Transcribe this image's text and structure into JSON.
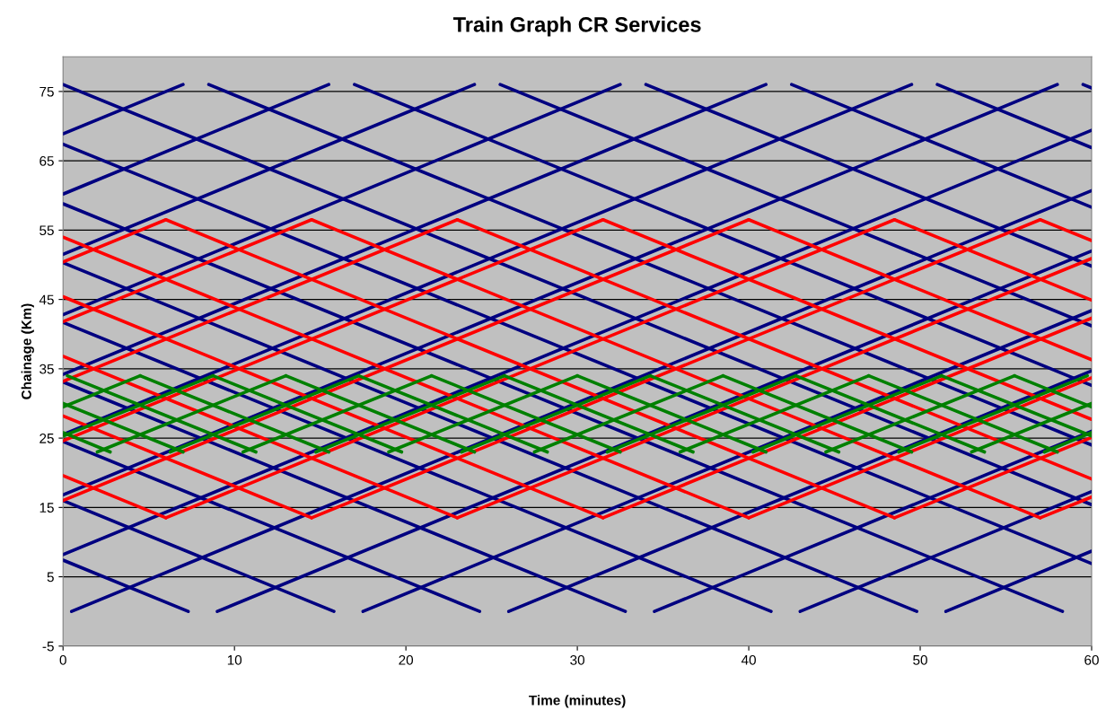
{
  "chart_data": {
    "type": "line",
    "title": "Train Graph CR Services",
    "xlabel": "Time (minutes)",
    "ylabel": "Chainage (Km)",
    "xlim": [
      0,
      60
    ],
    "xticks": [
      0,
      10,
      20,
      30,
      40,
      50,
      60
    ],
    "ylim": [
      -5,
      80
    ],
    "yticks": [
      -5,
      5,
      15,
      25,
      35,
      45,
      55,
      65,
      75
    ],
    "grid": "y",
    "legend": false,
    "series": [
      {
        "color": "#000080",
        "x": [
          0,
          7.3
        ],
        "values": [
          7.4,
          0
        ]
      },
      {
        "color": "#000080",
        "x": [
          0,
          15.8
        ],
        "values": [
          16.0,
          0
        ]
      },
      {
        "color": "#000080",
        "x": [
          0,
          24.3
        ],
        "values": [
          24.5,
          0
        ]
      },
      {
        "color": "#000080",
        "x": [
          0,
          32.8
        ],
        "values": [
          33.1,
          0
        ]
      },
      {
        "color": "#000080",
        "x": [
          0,
          41.3
        ],
        "values": [
          41.7,
          0
        ]
      },
      {
        "color": "#000080",
        "x": [
          0,
          49.8
        ],
        "values": [
          50.3,
          0
        ]
      },
      {
        "color": "#000080",
        "x": [
          0,
          58.3
        ],
        "values": [
          58.8,
          0
        ]
      },
      {
        "color": "#000080",
        "x": [
          0,
          60
        ],
        "values": [
          67.4,
          6.9
        ]
      },
      {
        "color": "#000080",
        "x": [
          0,
          60
        ],
        "values": [
          76,
          15.4
        ]
      },
      {
        "color": "#000080",
        "x": [
          8.5,
          60
        ],
        "values": [
          76,
          24.0
        ]
      },
      {
        "color": "#000080",
        "x": [
          17,
          60
        ],
        "values": [
          76,
          32.6
        ]
      },
      {
        "color": "#000080",
        "x": [
          25.5,
          60
        ],
        "values": [
          76,
          41.2
        ]
      },
      {
        "color": "#000080",
        "x": [
          34,
          60
        ],
        "values": [
          76,
          49.8
        ]
      },
      {
        "color": "#000080",
        "x": [
          42.5,
          60
        ],
        "values": [
          76,
          58.3
        ]
      },
      {
        "color": "#000080",
        "x": [
          51,
          60
        ],
        "values": [
          76,
          66.9
        ]
      },
      {
        "color": "#000080",
        "x": [
          59.5,
          60
        ],
        "values": [
          76,
          75.5
        ]
      },
      {
        "color": "#000080",
        "x": [
          0,
          7
        ],
        "values": [
          68.9,
          76
        ]
      },
      {
        "color": "#000080",
        "x": [
          0,
          15.5
        ],
        "values": [
          60.2,
          76
        ]
      },
      {
        "color": "#000080",
        "x": [
          0,
          24
        ],
        "values": [
          51.5,
          76
        ]
      },
      {
        "color": "#000080",
        "x": [
          0,
          32.5
        ],
        "values": [
          42.8,
          76
        ]
      },
      {
        "color": "#000080",
        "x": [
          0,
          41
        ],
        "values": [
          34.2,
          76
        ]
      },
      {
        "color": "#000080",
        "x": [
          0,
          49.5
        ],
        "values": [
          25.5,
          76
        ]
      },
      {
        "color": "#000080",
        "x": [
          0,
          58
        ],
        "values": [
          16.8,
          76
        ]
      },
      {
        "color": "#000080",
        "x": [
          0,
          60
        ],
        "values": [
          8.2,
          69.4
        ]
      },
      {
        "color": "#000080",
        "x": [
          0.5,
          60
        ],
        "values": [
          0,
          60.7
        ]
      },
      {
        "color": "#000080",
        "x": [
          9,
          60
        ],
        "values": [
          0,
          52.0
        ]
      },
      {
        "color": "#000080",
        "x": [
          17.5,
          60
        ],
        "values": [
          0,
          43.4
        ]
      },
      {
        "color": "#000080",
        "x": [
          26,
          60
        ],
        "values": [
          0,
          34.7
        ]
      },
      {
        "color": "#000080",
        "x": [
          34.5,
          60
        ],
        "values": [
          0,
          26.0
        ]
      },
      {
        "color": "#000080",
        "x": [
          43,
          60
        ],
        "values": [
          0,
          17.3
        ]
      },
      {
        "color": "#000080",
        "x": [
          51.5,
          60
        ],
        "values": [
          0,
          8.7
        ]
      },
      {
        "color": "#ff0000",
        "x": [
          0,
          6
        ],
        "values": [
          19.6,
          13.5
        ]
      },
      {
        "color": "#ff0000",
        "x": [
          0,
          14.5
        ],
        "values": [
          28.2,
          13.5
        ]
      },
      {
        "color": "#ff0000",
        "x": [
          0,
          23
        ],
        "values": [
          36.8,
          13.5
        ]
      },
      {
        "color": "#ff0000",
        "x": [
          0,
          31.5
        ],
        "values": [
          45.4,
          13.5
        ]
      },
      {
        "color": "#ff0000",
        "x": [
          0,
          40
        ],
        "values": [
          54.0,
          13.5
        ]
      },
      {
        "color": "#ff0000",
        "x": [
          6,
          48.5
        ],
        "values": [
          56.5,
          13.5
        ]
      },
      {
        "color": "#ff0000",
        "x": [
          14.5,
          57
        ],
        "values": [
          56.5,
          13.5
        ]
      },
      {
        "color": "#ff0000",
        "x": [
          23,
          60
        ],
        "values": [
          56.5,
          19.1
        ]
      },
      {
        "color": "#ff0000",
        "x": [
          31.5,
          60
        ],
        "values": [
          56.5,
          27.7
        ]
      },
      {
        "color": "#ff0000",
        "x": [
          40,
          60
        ],
        "values": [
          56.5,
          36.3
        ]
      },
      {
        "color": "#ff0000",
        "x": [
          48.5,
          60
        ],
        "values": [
          56.5,
          44.9
        ]
      },
      {
        "color": "#ff0000",
        "x": [
          57,
          60
        ],
        "values": [
          56.5,
          53.5
        ]
      },
      {
        "color": "#ff0000",
        "x": [
          0,
          6
        ],
        "values": [
          50.4,
          56.5
        ]
      },
      {
        "color": "#ff0000",
        "x": [
          0,
          14.5
        ],
        "values": [
          41.8,
          56.5
        ]
      },
      {
        "color": "#ff0000",
        "x": [
          0,
          23
        ],
        "values": [
          33.2,
          56.5
        ]
      },
      {
        "color": "#ff0000",
        "x": [
          0,
          31.5
        ],
        "values": [
          24.6,
          56.5
        ]
      },
      {
        "color": "#ff0000",
        "x": [
          0,
          40
        ],
        "values": [
          16.0,
          56.5
        ]
      },
      {
        "color": "#ff0000",
        "x": [
          6,
          48.5
        ],
        "values": [
          13.5,
          56.5
        ]
      },
      {
        "color": "#ff0000",
        "x": [
          14.5,
          57
        ],
        "values": [
          13.5,
          56.5
        ]
      },
      {
        "color": "#ff0000",
        "x": [
          23,
          60
        ],
        "values": [
          13.5,
          50.9
        ]
      },
      {
        "color": "#ff0000",
        "x": [
          31.5,
          60
        ],
        "values": [
          13.5,
          42.3
        ]
      },
      {
        "color": "#ff0000",
        "x": [
          40,
          60
        ],
        "values": [
          13.5,
          33.7
        ]
      },
      {
        "color": "#ff0000",
        "x": [
          48.5,
          60
        ],
        "values": [
          13.5,
          25.1
        ]
      },
      {
        "color": "#ff0000",
        "x": [
          57,
          60
        ],
        "values": [
          13.5,
          16.5
        ]
      },
      {
        "color": "#008000",
        "x": [
          0,
          2.75
        ],
        "values": [
          25.8,
          23
        ]
      },
      {
        "color": "#008000",
        "x": [
          0,
          7
        ],
        "values": [
          30,
          23
        ]
      },
      {
        "color": "#008000",
        "x": [
          0.25,
          11.25
        ],
        "values": [
          34,
          23
        ]
      },
      {
        "color": "#008000",
        "x": [
          4.5,
          15.5
        ],
        "values": [
          34,
          23
        ]
      },
      {
        "color": "#008000",
        "x": [
          8.75,
          19.75
        ],
        "values": [
          34,
          23
        ]
      },
      {
        "color": "#008000",
        "x": [
          13,
          24
        ],
        "values": [
          34,
          23
        ]
      },
      {
        "color": "#008000",
        "x": [
          17.25,
          28.25
        ],
        "values": [
          34,
          23
        ]
      },
      {
        "color": "#008000",
        "x": [
          21.5,
          32.5
        ],
        "values": [
          34,
          23
        ]
      },
      {
        "color": "#008000",
        "x": [
          25.75,
          36.75
        ],
        "values": [
          34,
          23
        ]
      },
      {
        "color": "#008000",
        "x": [
          30,
          41
        ],
        "values": [
          34,
          23
        ]
      },
      {
        "color": "#008000",
        "x": [
          34.25,
          45.25
        ],
        "values": [
          34,
          23
        ]
      },
      {
        "color": "#008000",
        "x": [
          38.5,
          49.5
        ],
        "values": [
          34,
          23
        ]
      },
      {
        "color": "#008000",
        "x": [
          42.75,
          53.75
        ],
        "values": [
          34,
          23
        ]
      },
      {
        "color": "#008000",
        "x": [
          47,
          58
        ],
        "values": [
          34,
          23
        ]
      },
      {
        "color": "#008000",
        "x": [
          51.25,
          60
        ],
        "values": [
          34,
          25.3
        ]
      },
      {
        "color": "#008000",
        "x": [
          55.5,
          60
        ],
        "values": [
          34,
          29.5
        ]
      },
      {
        "color": "#008000",
        "x": [
          0,
          4.5
        ],
        "values": [
          29.5,
          34
        ]
      },
      {
        "color": "#008000",
        "x": [
          0,
          8.75
        ],
        "values": [
          25.3,
          34
        ]
      },
      {
        "color": "#008000",
        "x": [
          2,
          13
        ],
        "values": [
          23,
          34
        ]
      },
      {
        "color": "#008000",
        "x": [
          6.25,
          17.25
        ],
        "values": [
          23,
          34
        ]
      },
      {
        "color": "#008000",
        "x": [
          10.5,
          21.5
        ],
        "values": [
          23,
          34
        ]
      },
      {
        "color": "#008000",
        "x": [
          14.75,
          25.75
        ],
        "values": [
          23,
          34
        ]
      },
      {
        "color": "#008000",
        "x": [
          19,
          30
        ],
        "values": [
          23,
          34
        ]
      },
      {
        "color": "#008000",
        "x": [
          23.25,
          34.25
        ],
        "values": [
          23,
          34
        ]
      },
      {
        "color": "#008000",
        "x": [
          27.5,
          38.5
        ],
        "values": [
          23,
          34
        ]
      },
      {
        "color": "#008000",
        "x": [
          31.75,
          42.75
        ],
        "values": [
          23,
          34
        ]
      },
      {
        "color": "#008000",
        "x": [
          36,
          47
        ],
        "values": [
          23,
          34
        ]
      },
      {
        "color": "#008000",
        "x": [
          40.25,
          51.25
        ],
        "values": [
          23,
          34
        ]
      },
      {
        "color": "#008000",
        "x": [
          44.5,
          55.5
        ],
        "values": [
          23,
          34
        ]
      },
      {
        "color": "#008000",
        "x": [
          48.75,
          59.75
        ],
        "values": [
          23,
          34
        ]
      },
      {
        "color": "#008000",
        "x": [
          53,
          60
        ],
        "values": [
          23,
          30
        ]
      },
      {
        "color": "#008000",
        "x": [
          57.25,
          60
        ],
        "values": [
          23,
          25.8
        ]
      }
    ]
  }
}
